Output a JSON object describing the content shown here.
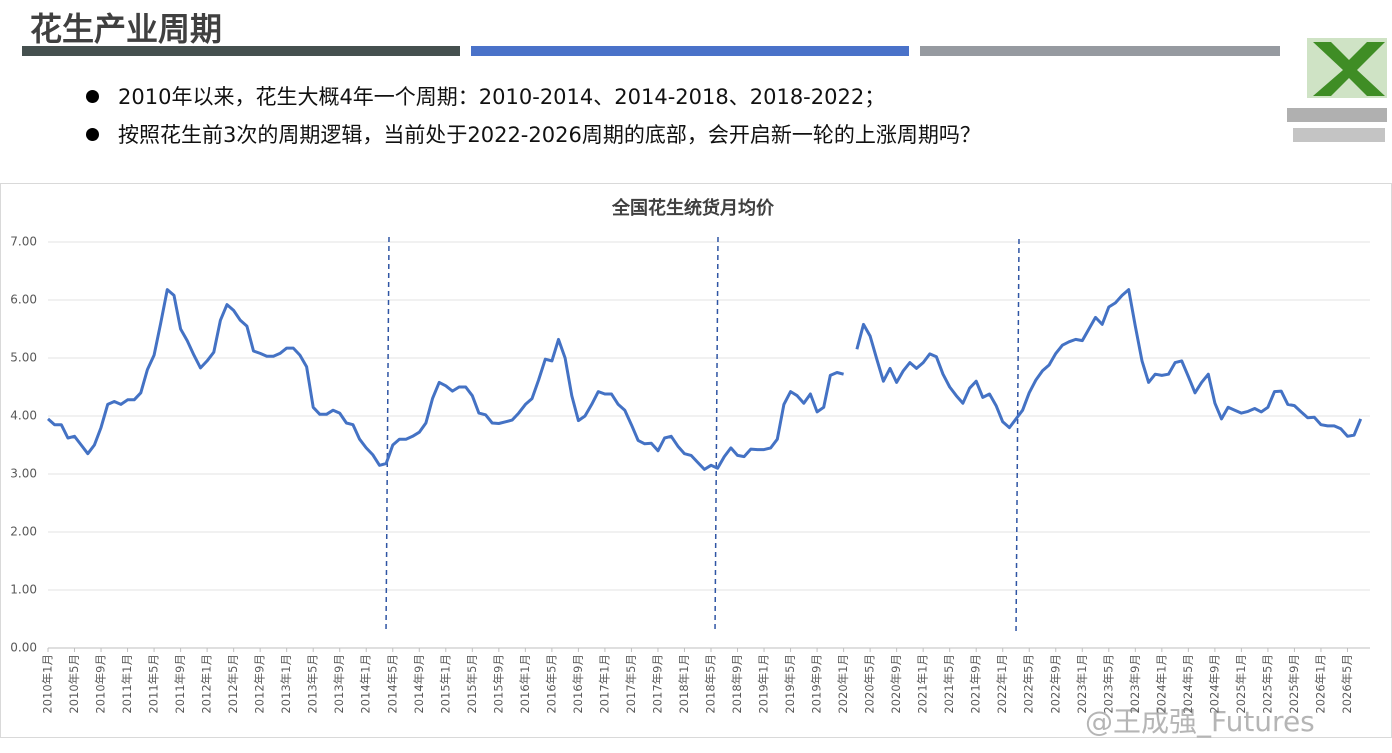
{
  "header": {
    "title": "花生产业周期"
  },
  "bullets": [
    "2010年以来，花生大概4年一个周期：2010-2014、2014-2018、2018-2022；",
    "按照花生前3次的周期逻辑，当前处于2022-2026周期的底部，会开启新一轮的上涨周期吗？"
  ],
  "watermark": "@王成强_Futures",
  "chart_data": {
    "type": "line",
    "title": "全国花生统货月均价",
    "color": "#4472c4",
    "grid": true,
    "ylim": [
      0,
      7
    ],
    "yticks": [
      {
        "value": 0,
        "label": "0.00"
      },
      {
        "value": 1,
        "label": "1.00"
      },
      {
        "value": 2,
        "label": "2.00"
      },
      {
        "value": 3,
        "label": "3.00"
      },
      {
        "value": 4,
        "label": "4.00"
      },
      {
        "value": 5,
        "label": "5.00"
      },
      {
        "value": 6,
        "label": "6.00"
      },
      {
        "value": 7,
        "label": "7.00"
      }
    ],
    "categories": [
      "2010年1月",
      null,
      null,
      null,
      "2010年5月",
      null,
      null,
      null,
      "2010年9月",
      null,
      null,
      null,
      "2011年1月",
      null,
      null,
      null,
      "2011年5月",
      null,
      null,
      null,
      "2011年9月",
      null,
      null,
      null,
      "2012年1月",
      null,
      null,
      null,
      "2012年5月",
      null,
      null,
      null,
      "2012年9月",
      null,
      null,
      null,
      "2013年1月",
      null,
      null,
      null,
      "2013年5月",
      null,
      null,
      null,
      "2013年9月",
      null,
      null,
      null,
      "2014年1月",
      null,
      null,
      null,
      "2014年5月",
      null,
      null,
      null,
      "2014年9月",
      null,
      null,
      null,
      "2015年1月",
      null,
      null,
      null,
      "2015年5月",
      null,
      null,
      null,
      "2015年9月",
      null,
      null,
      null,
      "2016年1月",
      null,
      null,
      null,
      "2016年5月",
      null,
      null,
      null,
      "2016年9月",
      null,
      null,
      null,
      "2017年1月",
      null,
      null,
      null,
      "2017年5月",
      null,
      null,
      null,
      "2017年9月",
      null,
      null,
      null,
      "2018年1月",
      null,
      null,
      null,
      "2018年5月",
      null,
      null,
      null,
      "2018年9月",
      null,
      null,
      null,
      "2019年1月",
      null,
      null,
      null,
      "2019年5月",
      null,
      null,
      null,
      "2019年9月",
      null,
      null,
      null,
      "2020年1月",
      null,
      null,
      null,
      "2020年5月",
      null,
      null,
      null,
      "2020年9月",
      null,
      null,
      null,
      "2021年1月",
      null,
      null,
      null,
      "2021年5月",
      null,
      null,
      null,
      "2021年9月",
      null,
      null,
      null,
      "2022年1月",
      null,
      null,
      null,
      "2022年5月",
      null,
      null,
      null,
      "2022年9月",
      null,
      null,
      null,
      "2023年1月",
      null,
      null,
      null,
      "2023年5月",
      null,
      null,
      null,
      "2023年9月",
      null,
      null,
      null,
      "2024年1月",
      null,
      null,
      null,
      "2024年5月",
      null,
      null,
      null,
      "2024年9月",
      null,
      null,
      null,
      "2025年1月",
      null,
      null,
      null,
      "2025年5月",
      null,
      null,
      null,
      "2025年9月",
      null,
      null,
      null,
      "2026年1月",
      null,
      null,
      null,
      "2026年5月",
      null,
      null
    ],
    "values": [
      3.95,
      3.85,
      3.85,
      3.62,
      3.65,
      3.5,
      3.35,
      3.5,
      3.8,
      4.2,
      4.25,
      4.2,
      4.28,
      4.28,
      4.4,
      4.8,
      5.05,
      5.6,
      6.18,
      6.08,
      5.5,
      5.3,
      5.05,
      4.83,
      4.95,
      5.1,
      5.65,
      5.92,
      5.82,
      5.65,
      5.55,
      5.12,
      5.08,
      5.03,
      5.03,
      5.08,
      5.17,
      5.17,
      5.05,
      4.85,
      4.15,
      4.03,
      4.03,
      4.1,
      4.05,
      3.88,
      3.85,
      3.6,
      3.45,
      3.33,
      3.15,
      3.18,
      3.5,
      3.6,
      3.6,
      3.65,
      3.72,
      3.88,
      4.3,
      4.58,
      4.52,
      4.43,
      4.5,
      4.5,
      4.35,
      4.05,
      4.02,
      3.88,
      3.87,
      3.9,
      3.93,
      4.05,
      4.2,
      4.3,
      4.62,
      4.98,
      4.95,
      5.32,
      5.0,
      4.35,
      3.92,
      4.0,
      4.2,
      4.42,
      4.38,
      4.38,
      4.2,
      4.1,
      3.85,
      3.58,
      3.52,
      3.53,
      3.4,
      3.62,
      3.65,
      3.48,
      3.35,
      3.32,
      3.2,
      3.08,
      3.15,
      3.1,
      3.3,
      3.45,
      3.32,
      3.3,
      3.43,
      3.42,
      3.42,
      3.45,
      3.6,
      4.2,
      4.42,
      4.35,
      4.22,
      4.38,
      4.07,
      4.15,
      4.7,
      4.75,
      4.72,
      null,
      5.15,
      5.58,
      5.38,
      4.98,
      4.6,
      4.82,
      4.58,
      4.78,
      4.92,
      4.82,
      4.92,
      5.07,
      5.02,
      4.72,
      4.5,
      4.35,
      4.22,
      4.48,
      4.6,
      4.32,
      4.38,
      4.18,
      3.9,
      3.8,
      3.95,
      4.1,
      4.4,
      4.62,
      4.78,
      4.88,
      5.08,
      5.22,
      5.28,
      5.32,
      5.3,
      5.5,
      5.7,
      5.58,
      5.88,
      5.95,
      6.08,
      6.18,
      5.55,
      4.95,
      4.58,
      4.72,
      4.7,
      4.72,
      4.92,
      4.95,
      4.68,
      4.4,
      4.58,
      4.72,
      4.22,
      3.95,
      4.15,
      4.1,
      4.05,
      4.08,
      4.13,
      4.07,
      4.15,
      4.42,
      4.43,
      4.2,
      4.18,
      4.07,
      3.97,
      3.98,
      3.85,
      3.83,
      3.83,
      3.78,
      3.65,
      3.67,
      3.95
    ]
  }
}
